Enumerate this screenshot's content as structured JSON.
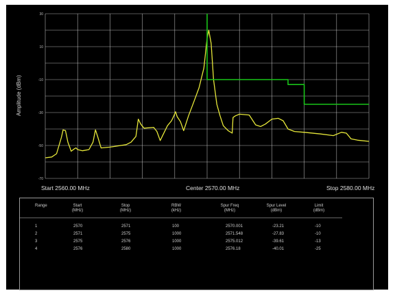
{
  "plot": {
    "y_axis_label": "Amplitude (dBm)",
    "y_ticks": [
      "30",
      "10",
      "-10",
      "-30",
      "-50",
      "-70"
    ],
    "x_labels": {
      "start": "Start 2560.00 MHz",
      "center": "Center 2570.00 MHz",
      "stop": "Stop 2580.00 MHz"
    },
    "colors": {
      "trace": "#e7e83a",
      "limit": "#19c419",
      "grid": "#d9d9d9",
      "background": "#000000"
    }
  },
  "chart_data": {
    "type": "line",
    "x_unit": "MHz",
    "y_unit": "dBm",
    "xlim": [
      2560,
      2580
    ],
    "ylim": [
      -70,
      30
    ],
    "grid": true,
    "series": [
      {
        "role": "trace",
        "points": [
          [
            2560.0,
            -57.5
          ],
          [
            2560.4,
            -57.0
          ],
          [
            2560.7,
            -55.0
          ],
          [
            2561.0,
            -45.0
          ],
          [
            2561.1,
            -40.5
          ],
          [
            2561.25,
            -41.0
          ],
          [
            2561.4,
            -48.0
          ],
          [
            2561.6,
            -53.5
          ],
          [
            2561.8,
            -52.0
          ],
          [
            2561.9,
            -51.5
          ],
          [
            2562.0,
            -52.5
          ],
          [
            2562.3,
            -53.2
          ],
          [
            2562.7,
            -52.5
          ],
          [
            2562.95,
            -48.0
          ],
          [
            2563.1,
            -40.5
          ],
          [
            2563.25,
            -45.0
          ],
          [
            2563.45,
            -51.5
          ],
          [
            2564.0,
            -51.0
          ],
          [
            2565.0,
            -49.5
          ],
          [
            2565.3,
            -48.0
          ],
          [
            2565.6,
            -44.5
          ],
          [
            2565.75,
            -34.0
          ],
          [
            2565.9,
            -37.0
          ],
          [
            2566.1,
            -39.5
          ],
          [
            2566.7,
            -39.0
          ],
          [
            2566.9,
            -41.5
          ],
          [
            2567.1,
            -47.0
          ],
          [
            2567.3,
            -43.0
          ],
          [
            2567.55,
            -38.0
          ],
          [
            2567.8,
            -35.0
          ],
          [
            2567.95,
            -32.0
          ],
          [
            2568.05,
            -29.5
          ],
          [
            2568.15,
            -32.5
          ],
          [
            2568.35,
            -35.5
          ],
          [
            2568.55,
            -41.0
          ],
          [
            2568.85,
            -32.0
          ],
          [
            2569.2,
            -23.0
          ],
          [
            2569.5,
            -15.0
          ],
          [
            2569.8,
            -3.0
          ],
          [
            2570.0,
            15.0
          ],
          [
            2570.1,
            20.0
          ],
          [
            2570.25,
            12.0
          ],
          [
            2570.4,
            -10.0
          ],
          [
            2570.6,
            -25.0
          ],
          [
            2570.8,
            -32.0
          ],
          [
            2571.0,
            -38.0
          ],
          [
            2571.3,
            -41.0
          ],
          [
            2571.55,
            -42.5
          ],
          [
            2571.6,
            -33.0
          ],
          [
            2571.75,
            -32.0
          ],
          [
            2572.0,
            -31.0
          ],
          [
            2572.6,
            -31.5
          ],
          [
            2573.0,
            -37.5
          ],
          [
            2573.3,
            -38.5
          ],
          [
            2573.6,
            -37.0
          ],
          [
            2574.0,
            -34.0
          ],
          [
            2574.4,
            -33.5
          ],
          [
            2574.7,
            -35.0
          ],
          [
            2575.0,
            -40.0
          ],
          [
            2575.4,
            -41.5
          ],
          [
            2576.0,
            -42.0
          ],
          [
            2577.0,
            -43.0
          ],
          [
            2577.8,
            -44.0
          ],
          [
            2578.3,
            -42.0
          ],
          [
            2578.6,
            -42.5
          ],
          [
            2578.9,
            -46.0
          ],
          [
            2579.3,
            -46.8
          ],
          [
            2580.0,
            -47.5
          ]
        ]
      },
      {
        "role": "limit",
        "points": [
          [
            2570.0,
            30.0
          ],
          [
            2570.0,
            -10.0
          ],
          [
            2571.0,
            -10.0
          ],
          [
            2575.0,
            -10.0
          ],
          [
            2575.0,
            -13.0
          ],
          [
            2576.0,
            -13.0
          ],
          [
            2576.0,
            -25.0
          ],
          [
            2580.0,
            -25.0
          ]
        ]
      }
    ]
  },
  "table": {
    "columns": [
      {
        "key": "range",
        "label": "Range"
      },
      {
        "key": "start",
        "label": "Start\n(MHz)"
      },
      {
        "key": "stop",
        "label": "Stop\n(MHz)"
      },
      {
        "key": "rbw",
        "label": "RBW\n(kHz)"
      },
      {
        "key": "spur_freq",
        "label": "Spur Freq\n(MHz)"
      },
      {
        "key": "spur_level",
        "label": "Spur Level\n(dBm)"
      },
      {
        "key": "limit",
        "label": "Limit\n(dBm)"
      }
    ],
    "rows": [
      [
        "1",
        "2570",
        "2571",
        "100",
        "2570.001",
        "-23.21",
        "-10"
      ],
      [
        "2",
        "2571",
        "2575",
        "1000",
        "2571.548",
        "-27.83",
        "-10"
      ],
      [
        "3",
        "2575",
        "2576",
        "1000",
        "2575.012",
        "-39.61",
        "-13"
      ],
      [
        "4",
        "2576",
        "2580",
        "1000",
        "2576.18",
        "-40.01",
        "-25"
      ]
    ]
  }
}
